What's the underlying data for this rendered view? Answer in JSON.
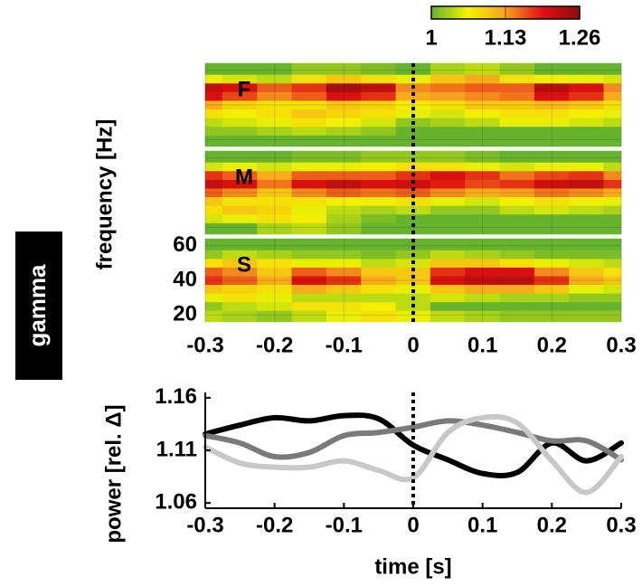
{
  "side_label": "gamma",
  "chart_data": [
    {
      "type": "heatmap",
      "label": "F",
      "colorbar": {
        "clim": [
          1,
          1.26
        ],
        "ticks": [
          1,
          1.13,
          1.26
        ],
        "colormap": [
          "#66b32e",
          "#f4f400",
          "#f7a020",
          "#e01010",
          "#8b0e0e"
        ]
      },
      "x": [
        -0.3,
        -0.25,
        -0.2,
        -0.15,
        -0.1,
        -0.05,
        0,
        0.05,
        0.1,
        0.15,
        0.2,
        0.25,
        0.3
      ],
      "y": [
        20,
        25,
        30,
        35,
        40,
        45,
        50,
        55,
        60
      ],
      "values": [
        [
          1.0,
          1.0,
          1.0,
          1.0,
          1.0,
          1.0,
          1.0,
          1.0,
          1.0,
          1.0,
          1.0,
          1.0,
          1.0
        ],
        [
          1.02,
          1.02,
          1.03,
          1.04,
          1.03,
          1.02,
          1.0,
          1.0,
          1.0,
          1.0,
          1.0,
          1.0,
          1.0
        ],
        [
          1.04,
          1.05,
          1.06,
          1.08,
          1.07,
          1.05,
          1.02,
          1.03,
          1.04,
          1.06,
          1.06,
          1.05,
          1.04
        ],
        [
          1.08,
          1.07,
          1.08,
          1.1,
          1.09,
          1.08,
          1.06,
          1.05,
          1.07,
          1.08,
          1.08,
          1.07,
          1.06
        ],
        [
          1.12,
          1.09,
          1.08,
          1.08,
          1.1,
          1.09,
          1.07,
          1.08,
          1.1,
          1.1,
          1.11,
          1.1,
          1.08
        ],
        [
          1.2,
          1.17,
          1.14,
          1.16,
          1.2,
          1.18,
          1.12,
          1.13,
          1.14,
          1.15,
          1.2,
          1.18,
          1.12
        ],
        [
          1.22,
          1.2,
          1.16,
          1.18,
          1.24,
          1.22,
          1.14,
          1.15,
          1.16,
          1.16,
          1.23,
          1.2,
          1.14
        ],
        [
          1.06,
          1.05,
          1.04,
          1.08,
          1.1,
          1.08,
          1.06,
          1.1,
          1.12,
          1.08,
          1.07,
          1.06,
          1.05
        ],
        [
          1.0,
          1.0,
          1.0,
          1.02,
          1.02,
          1.01,
          1.0,
          1.03,
          1.04,
          1.02,
          1.0,
          1.0,
          1.0
        ]
      ],
      "xlim": [
        -0.3,
        0.3
      ],
      "ylim": [
        16,
        64
      ],
      "vline": 0
    },
    {
      "type": "heatmap",
      "label": "M",
      "x": [
        -0.3,
        -0.25,
        -0.2,
        -0.15,
        -0.1,
        -0.05,
        0,
        0.05,
        0.1,
        0.15,
        0.2,
        0.25,
        0.3
      ],
      "y": [
        20,
        25,
        30,
        35,
        40,
        45,
        50,
        55,
        60
      ],
      "values": [
        [
          1.0,
          1.0,
          1.03,
          1.04,
          1.02,
          1.0,
          1.0,
          1.0,
          1.0,
          1.0,
          1.0,
          1.0,
          1.0
        ],
        [
          1.05,
          1.06,
          1.08,
          1.07,
          1.03,
          1.01,
          1.0,
          1.0,
          1.0,
          1.0,
          1.0,
          1.0,
          1.0
        ],
        [
          1.08,
          1.1,
          1.09,
          1.06,
          1.04,
          1.03,
          1.04,
          1.02,
          1.02,
          1.04,
          1.05,
          1.04,
          1.03
        ],
        [
          1.1,
          1.08,
          1.08,
          1.08,
          1.07,
          1.07,
          1.08,
          1.06,
          1.05,
          1.07,
          1.08,
          1.07,
          1.06
        ],
        [
          1.16,
          1.14,
          1.1,
          1.14,
          1.16,
          1.15,
          1.16,
          1.14,
          1.12,
          1.13,
          1.15,
          1.14,
          1.12
        ],
        [
          1.22,
          1.2,
          1.15,
          1.2,
          1.22,
          1.2,
          1.21,
          1.19,
          1.17,
          1.18,
          1.21,
          1.22,
          1.18
        ],
        [
          1.18,
          1.16,
          1.12,
          1.16,
          1.16,
          1.16,
          1.18,
          1.2,
          1.18,
          1.15,
          1.17,
          1.18,
          1.14
        ],
        [
          1.05,
          1.06,
          1.05,
          1.06,
          1.06,
          1.07,
          1.08,
          1.08,
          1.06,
          1.05,
          1.06,
          1.06,
          1.04
        ],
        [
          1.0,
          1.0,
          1.0,
          1.01,
          1.01,
          1.02,
          1.02,
          1.02,
          1.01,
          1.0,
          1.0,
          1.0,
          1.0
        ]
      ],
      "xlim": [
        -0.3,
        0.3
      ],
      "ylim": [
        16,
        64
      ],
      "vline": 0
    },
    {
      "type": "heatmap",
      "label": "S",
      "ylabel": "frequency [Hz]",
      "x": [
        -0.3,
        -0.25,
        -0.2,
        -0.15,
        -0.1,
        -0.05,
        0,
        0.05,
        0.1,
        0.15,
        0.2,
        0.25,
        0.3
      ],
      "y": [
        20,
        25,
        30,
        35,
        40,
        45,
        50,
        55,
        60
      ],
      "values": [
        [
          1.04,
          1.03,
          1.02,
          1.04,
          1.06,
          1.08,
          1.06,
          1.04,
          1.03,
          1.02,
          1.02,
          1.02,
          1.02
        ],
        [
          1.02,
          1.04,
          1.05,
          1.08,
          1.08,
          1.07,
          1.04,
          1.0,
          1.0,
          1.0,
          1.0,
          1.0,
          1.0
        ],
        [
          1.06,
          1.08,
          1.06,
          1.04,
          1.04,
          1.04,
          1.04,
          1.05,
          1.04,
          1.03,
          1.03,
          1.02,
          1.02
        ],
        [
          1.1,
          1.09,
          1.08,
          1.12,
          1.1,
          1.08,
          1.06,
          1.1,
          1.12,
          1.12,
          1.1,
          1.06,
          1.05
        ],
        [
          1.18,
          1.16,
          1.12,
          1.2,
          1.18,
          1.12,
          1.1,
          1.2,
          1.22,
          1.22,
          1.18,
          1.12,
          1.1
        ],
        [
          1.16,
          1.14,
          1.1,
          1.16,
          1.14,
          1.1,
          1.1,
          1.18,
          1.2,
          1.2,
          1.14,
          1.1,
          1.08
        ],
        [
          1.08,
          1.1,
          1.08,
          1.06,
          1.06,
          1.04,
          1.05,
          1.1,
          1.1,
          1.08,
          1.06,
          1.05,
          1.04
        ],
        [
          1.02,
          1.04,
          1.03,
          1.02,
          1.02,
          1.01,
          1.02,
          1.04,
          1.03,
          1.02,
          1.01,
          1.01,
          1.01
        ],
        [
          1.0,
          1.0,
          1.0,
          1.0,
          1.0,
          1.0,
          1.0,
          1.0,
          1.0,
          1.0,
          1.0,
          1.0,
          1.0
        ]
      ],
      "xlim": [
        -0.3,
        0.3
      ],
      "ylim": [
        16,
        64
      ],
      "xticks": [
        -0.3,
        -0.2,
        -0.1,
        0,
        0.1,
        0.2,
        0.3
      ],
      "yticks": [
        20,
        40,
        60
      ],
      "grid": true,
      "vline": 0
    },
    {
      "type": "line",
      "xlabel": "time [s]",
      "ylabel": "power [rel. Δ]",
      "x": [
        -0.3,
        -0.25,
        -0.2,
        -0.15,
        -0.1,
        -0.05,
        0,
        0.05,
        0.1,
        0.15,
        0.2,
        0.25,
        0.3
      ],
      "series": [
        {
          "color": "#000000",
          "values": [
            1.1255,
            1.134,
            1.141,
            1.138,
            1.143,
            1.14,
            1.115,
            1.101,
            1.088,
            1.089,
            1.117,
            1.1,
            1.117
          ]
        },
        {
          "color": "#7a7a7a",
          "values": [
            1.124,
            1.117,
            1.104,
            1.108,
            1.124,
            1.127,
            1.132,
            1.138,
            1.134,
            1.127,
            1.119,
            1.119,
            1.101
          ]
        },
        {
          "color": "#c8c8c8",
          "values": [
            1.113,
            1.098,
            1.094,
            1.094,
            1.1,
            1.091,
            1.084,
            1.127,
            1.141,
            1.136,
            1.1,
            1.07,
            1.104
          ]
        }
      ],
      "xlim": [
        -0.3,
        0.3
      ],
      "ylim": [
        1.055,
        1.165
      ],
      "xticks": [
        -0.3,
        -0.2,
        -0.1,
        0,
        0.1,
        0.2,
        0.3
      ],
      "yticks": [
        1.06,
        1.11,
        1.16
      ],
      "vline": 0
    }
  ]
}
